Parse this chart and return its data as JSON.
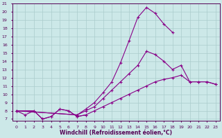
{
  "xlabel": "Windchill (Refroidissement éolien,°C)",
  "bg_color": "#cce8e8",
  "line_color": "#880088",
  "grid_color": "#aacccc",
  "xlim": [
    -0.5,
    23.5
  ],
  "ylim": [
    6.8,
    21.0
  ],
  "xticks": [
    0,
    1,
    2,
    3,
    4,
    5,
    6,
    7,
    8,
    9,
    10,
    11,
    12,
    13,
    14,
    15,
    16,
    17,
    18,
    19,
    20,
    21,
    22,
    23
  ],
  "yticks": [
    7,
    8,
    9,
    10,
    11,
    12,
    13,
    14,
    15,
    16,
    17,
    18,
    19,
    20,
    21
  ],
  "series": [
    {
      "x": [
        0,
        1,
        2,
        3,
        4,
        5,
        6,
        7,
        8
      ],
      "y": [
        8.0,
        7.5,
        8.0,
        7.0,
        7.3,
        8.2,
        8.0,
        7.3,
        7.5
      ]
    },
    {
      "x": [
        0,
        2,
        3,
        4,
        5,
        6,
        7,
        8,
        9,
        10,
        11,
        12,
        13,
        14,
        15,
        16,
        17,
        18,
        19,
        20,
        21,
        22,
        23
      ],
      "y": [
        8.0,
        8.0,
        7.0,
        7.3,
        8.2,
        8.0,
        7.3,
        7.5,
        8.0,
        8.5,
        9.0,
        9.5,
        10.0,
        10.5,
        11.0,
        11.5,
        11.8,
        12.0,
        12.3,
        11.5,
        11.5,
        11.5,
        11.2
      ]
    },
    {
      "x": [
        0,
        7,
        8,
        9,
        10,
        11,
        12,
        13,
        14,
        15,
        16,
        17,
        18,
        19,
        20,
        21,
        22,
        23
      ],
      "y": [
        8.0,
        7.5,
        8.0,
        8.5,
        9.5,
        10.5,
        11.5,
        12.5,
        13.5,
        15.2,
        14.8,
        14.0,
        13.0,
        13.5,
        11.5,
        11.5,
        11.5,
        11.2
      ]
    },
    {
      "x": [
        0,
        7,
        8,
        9,
        10,
        11,
        12,
        13,
        14,
        15,
        16,
        17,
        18
      ],
      "y": [
        8.0,
        7.5,
        8.2,
        9.0,
        10.2,
        11.5,
        13.8,
        16.5,
        19.3,
        20.5,
        19.8,
        18.5,
        17.5
      ]
    }
  ]
}
